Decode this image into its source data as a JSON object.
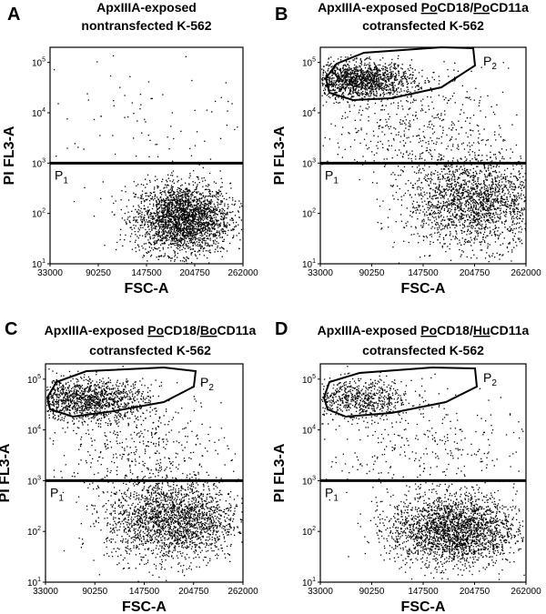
{
  "chart_data": [
    {
      "type": "scatter",
      "panel": "A",
      "title_lines": [
        "ApxIIIA-exposed",
        "nontransfected K-562"
      ],
      "xlabel": "FSC-A",
      "ylabel": "PI FL3-A",
      "x_ticks": [
        "33000",
        "90250",
        "147500",
        "204750",
        "262000"
      ],
      "y_ticks": [
        "10^1",
        "10^2",
        "10^3",
        "10^4",
        "10^5"
      ],
      "xlim": [
        33000,
        262000
      ],
      "ylim": [
        10,
        200000
      ],
      "y_scale": "log",
      "gates": [
        {
          "name": "P1",
          "type": "threshold",
          "y": 1000
        }
      ],
      "series": [
        {
          "population": "P1 dense",
          "center": [
            190000,
            80
          ],
          "spread": [
            28000,
            0.35
          ],
          "count": 2600
        },
        {
          "population": "sparse high",
          "center": [
            140000,
            8000
          ],
          "spread": [
            70000,
            0.7
          ],
          "count": 90
        }
      ]
    },
    {
      "type": "scatter",
      "panel": "B",
      "title_lines": [
        "ApxIIIA-exposed PoCD18/PoCD11a",
        "cotransfected K-562"
      ],
      "underlined": [
        "Po",
        "Po"
      ],
      "xlabel": "FSC-A",
      "ylabel": "PI FL3-A",
      "x_ticks": [
        "33000",
        "90250",
        "147500",
        "204750",
        "262000"
      ],
      "y_ticks": [
        "10^1",
        "10^2",
        "10^3",
        "10^4",
        "10^5"
      ],
      "xlim": [
        33000,
        262000
      ],
      "ylim": [
        10,
        200000
      ],
      "y_scale": "log",
      "gates": [
        {
          "name": "P1",
          "type": "threshold",
          "y": 1000
        },
        {
          "name": "P2",
          "type": "polygon"
        }
      ],
      "series": [
        {
          "population": "P1",
          "center": [
            205000,
            170
          ],
          "spread": [
            38000,
            0.45
          ],
          "count": 2000
        },
        {
          "population": "P2",
          "center": [
            75000,
            45000
          ],
          "spread": [
            30000,
            0.18
          ],
          "count": 1500
        },
        {
          "population": "intermediate",
          "center": [
            140000,
            5000
          ],
          "spread": [
            50000,
            0.55
          ],
          "count": 500
        }
      ]
    },
    {
      "type": "scatter",
      "panel": "C",
      "title_lines": [
        "ApxIIIA-exposed PoCD18/BoCD11a",
        "cotransfected K-562"
      ],
      "underlined": [
        "Po",
        "Bo"
      ],
      "xlabel": "FSC-A",
      "ylabel": "PI FL3-A",
      "x_ticks": [
        "33000",
        "90250",
        "147500",
        "204750",
        "262000"
      ],
      "y_ticks": [
        "10^1",
        "10^2",
        "10^3",
        "10^4",
        "10^5"
      ],
      "xlim": [
        33000,
        262000
      ],
      "ylim": [
        10,
        200000
      ],
      "y_scale": "log",
      "gates": [
        {
          "name": "P1",
          "type": "threshold",
          "y": 1000
        },
        {
          "name": "P2",
          "type": "polygon"
        }
      ],
      "series": [
        {
          "population": "P1",
          "center": [
            180000,
            170
          ],
          "spread": [
            38000,
            0.4
          ],
          "count": 2200
        },
        {
          "population": "P2",
          "center": [
            80000,
            40000
          ],
          "spread": [
            35000,
            0.2
          ],
          "count": 1300
        },
        {
          "population": "intermediate",
          "center": [
            140000,
            5000
          ],
          "spread": [
            50000,
            0.5
          ],
          "count": 450
        }
      ]
    },
    {
      "type": "scatter",
      "panel": "D",
      "title_lines": [
        "ApxIIIA-exposed PoCD18/HuCD11a",
        "cotransfected K-562"
      ],
      "underlined": [
        "Po",
        "Hu"
      ],
      "xlabel": "FSC-A",
      "ylabel": "PI FL3-A",
      "x_ticks": [
        "33000",
        "90250",
        "147500",
        "204750",
        "262000"
      ],
      "y_ticks": [
        "10^1",
        "10^2",
        "10^3",
        "10^4",
        "10^5"
      ],
      "xlim": [
        33000,
        262000
      ],
      "ylim": [
        10,
        200000
      ],
      "y_scale": "log",
      "gates": [
        {
          "name": "P1",
          "type": "threshold",
          "y": 1000
        },
        {
          "name": "P2",
          "type": "polygon"
        }
      ],
      "series": [
        {
          "population": "P1",
          "center": [
            180000,
            110
          ],
          "spread": [
            35000,
            0.35
          ],
          "count": 2400
        },
        {
          "population": "P2",
          "center": [
            75000,
            40000
          ],
          "spread": [
            30000,
            0.2
          ],
          "count": 700
        },
        {
          "population": "intermediate",
          "center": [
            150000,
            4000
          ],
          "spread": [
            55000,
            0.55
          ],
          "count": 300
        }
      ]
    }
  ],
  "labels": {
    "p1": "P",
    "p1_sub": "1",
    "p2": "P",
    "p2_sub": "2",
    "exp_base": "10"
  }
}
